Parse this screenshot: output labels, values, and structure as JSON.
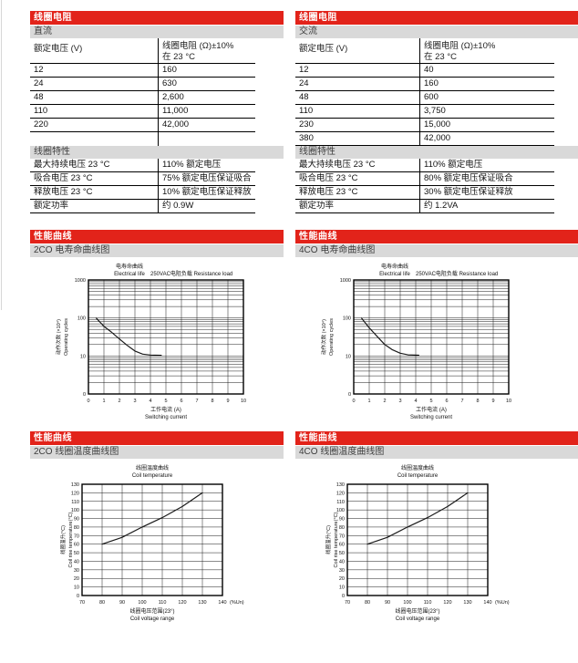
{
  "colors": {
    "accent_red": "#e2231a",
    "bar_gray": "#d9d9d9"
  },
  "dc_table": {
    "header": "线圈电阻",
    "subheader": "直流",
    "col_voltage": "额定电压 (V)",
    "col_resistance_line1": "线圈电阻 (Ω)±10%",
    "col_resistance_line2": "在 23 °C",
    "rows": [
      [
        "12",
        "160"
      ],
      [
        "24",
        "630"
      ],
      [
        "48",
        "2,600"
      ],
      [
        "110",
        "11,000"
      ],
      [
        "220",
        "42,000"
      ]
    ]
  },
  "ac_table": {
    "header": "线圈电阻",
    "subheader": "交流",
    "col_voltage": "额定电压 (V)",
    "col_resistance_line1": "线圈电阻 (Ω)±10%",
    "col_resistance_line2": "在 23 °C",
    "rows": [
      [
        "12",
        "40"
      ],
      [
        "24",
        "160"
      ],
      [
        "48",
        "600"
      ],
      [
        "110",
        "3,750"
      ],
      [
        "230",
        "15,000"
      ],
      [
        "380",
        "42,000"
      ]
    ]
  },
  "coil_char_dc": {
    "header": "线圈特性",
    "rows": [
      [
        "最大持续电压 23 °C",
        "110% 额定电压"
      ],
      [
        "吸合电压 23 °C",
        "75% 额定电压保证吸合"
      ],
      [
        "释放电压 23 °C",
        "10% 额定电压保证释放"
      ],
      [
        "额定功率",
        "约 0.9W"
      ]
    ]
  },
  "coil_char_ac": {
    "header": "线圈特性",
    "rows": [
      [
        "最大持续电压 23 °C",
        "110% 额定电压"
      ],
      [
        "吸合电压 23 °C",
        "80% 额定电压保证吸合"
      ],
      [
        "释放电压 23 °C",
        "30% 额定电压保证释放"
      ],
      [
        "额定功率",
        "约 1.2VA"
      ]
    ]
  },
  "life": {
    "left": {
      "header": "性能曲线",
      "subheader": "2CO 电寿命曲线图"
    },
    "right": {
      "header": "性能曲线",
      "subheader": "4CO 电寿命曲线图"
    }
  },
  "temp": {
    "left": {
      "header": "性能曲线",
      "subheader": "2CO 线圈温度曲线图"
    },
    "right": {
      "header": "性能曲线",
      "subheader": "4CO 线圈温度曲线图"
    }
  },
  "chart_data": [
    {
      "type": "line",
      "id": "electrical-life-2co",
      "title_cn": "电寿命曲线",
      "title_en": "Electrical life",
      "load_label": "250VAC电阻负载 Resistance load",
      "xlabel_cn": "工作电流 (A)",
      "xlabel_en": "Switching current",
      "ylabel_cn": "动作次数 (×10⁴)",
      "ylabel_en": "Operating cycles",
      "y_scale": "log",
      "x_range": [
        0,
        10
      ],
      "y_range": [
        1,
        1000
      ],
      "xticks": [
        "0",
        "1",
        "2",
        "3",
        "4",
        "5",
        "6",
        "7",
        "8",
        "9",
        "10"
      ],
      "yticks": [
        "1000",
        "100",
        "10",
        "0"
      ],
      "grid": true,
      "series": [
        {
          "name": "2CO",
          "points": [
            [
              0.5,
              100
            ],
            [
              1,
              60
            ],
            [
              1.5,
              42
            ],
            [
              2,
              28
            ],
            [
              2.5,
              19
            ],
            [
              3,
              13.5
            ],
            [
              3.5,
              11.2
            ],
            [
              4,
              10.6
            ],
            [
              4.7,
              10.4
            ]
          ]
        }
      ]
    },
    {
      "type": "line",
      "id": "electrical-life-4co",
      "title_cn": "电寿命曲线",
      "title_en": "Electrical life",
      "load_label": "250VAC电阻负载 Resistance load",
      "xlabel_cn": "工作电流 (A)",
      "xlabel_en": "Switching current",
      "ylabel_cn": "动作次数 (×10⁴)",
      "ylabel_en": "Operating cycles",
      "y_scale": "log",
      "x_range": [
        0,
        10
      ],
      "y_range": [
        1,
        1000
      ],
      "xticks": [
        "0",
        "1",
        "2",
        "3",
        "4",
        "5",
        "6",
        "7",
        "8",
        "9",
        "10"
      ],
      "yticks": [
        "1000",
        "100",
        "10",
        "0"
      ],
      "grid": true,
      "series": [
        {
          "name": "4CO",
          "points": [
            [
              0.5,
              100
            ],
            [
              1,
              55
            ],
            [
              1.5,
              33
            ],
            [
              2,
              20
            ],
            [
              2.5,
              14.5
            ],
            [
              3,
              11.8
            ],
            [
              3.5,
              10.7
            ],
            [
              4.2,
              10.5
            ]
          ]
        }
      ]
    },
    {
      "type": "line",
      "id": "coil-temperature-2co",
      "title_cn": "线圈温度曲线",
      "title_en": "Coil temperature",
      "xlabel_cn": "线圈电压范围(23°)",
      "xlabel_en": "Coil voltage range",
      "x_unit": "(%Un)",
      "ylabel_cn": "线圈温升(°C)",
      "ylabel_en": "Coil rise temperature(°C)",
      "y_scale": "linear",
      "x_range": [
        70,
        140
      ],
      "y_range": [
        0,
        130
      ],
      "xticks": [
        "70",
        "80",
        "90",
        "100",
        "110",
        "120",
        "130",
        "140"
      ],
      "yticks": [
        "0",
        "10",
        "20",
        "30",
        "40",
        "50",
        "60",
        "70",
        "80",
        "90",
        "100",
        "110",
        "120",
        "130"
      ],
      "grid": true,
      "series": [
        {
          "name": "2CO",
          "points": [
            [
              80,
              60
            ],
            [
              90,
              68
            ],
            [
              100,
              80
            ],
            [
              110,
              91
            ],
            [
              120,
              104
            ],
            [
              130,
              120
            ]
          ]
        }
      ]
    },
    {
      "type": "line",
      "id": "coil-temperature-4co",
      "title_cn": "线圈温度曲线",
      "title_en": "Coil temperature",
      "xlabel_cn": "线圈电压范围(23°)",
      "xlabel_en": "Coil voltage range",
      "x_unit": "(%Un)",
      "ylabel_cn": "线圈温升(°C)",
      "ylabel_en": "Coil rise temperature(°C)",
      "y_scale": "linear",
      "x_range": [
        70,
        140
      ],
      "y_range": [
        0,
        130
      ],
      "xticks": [
        "70",
        "80",
        "90",
        "100",
        "110",
        "120",
        "130",
        "140"
      ],
      "yticks": [
        "0",
        "10",
        "20",
        "30",
        "40",
        "50",
        "60",
        "70",
        "80",
        "90",
        "100",
        "110",
        "120",
        "130"
      ],
      "grid": true,
      "series": [
        {
          "name": "4CO",
          "points": [
            [
              80,
              60
            ],
            [
              90,
              68
            ],
            [
              100,
              80
            ],
            [
              110,
              91
            ],
            [
              120,
              104
            ],
            [
              130,
              120
            ]
          ]
        }
      ]
    }
  ]
}
